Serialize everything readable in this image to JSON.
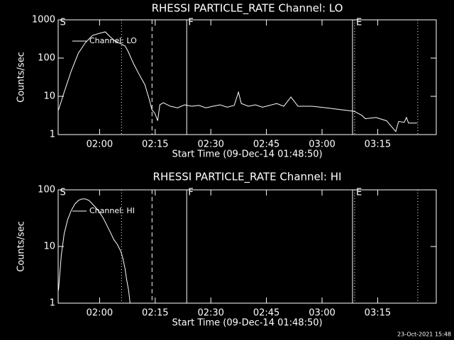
{
  "chart_data": [
    {
      "type": "line",
      "title": "RHESSI PARTICLE_RATE Channel: LO",
      "xlabel": "Start Time (09-Dec-14 01:48:50)",
      "ylabel": "Counts/sec",
      "log_y": true,
      "ylim": [
        1,
        1000
      ],
      "yticks": [
        1,
        10,
        100,
        1000
      ],
      "xlim": [
        108.83,
        210.8
      ],
      "xticks": [
        {
          "value": 120,
          "label": "02:00"
        },
        {
          "value": 135,
          "label": "02:15"
        },
        {
          "value": 150,
          "label": "02:30"
        },
        {
          "value": 165,
          "label": "02:45"
        },
        {
          "value": 180,
          "label": "03:00"
        },
        {
          "value": 195,
          "label": "03:15"
        }
      ],
      "x": [
        108.92,
        110.45,
        112.36,
        114.27,
        116.18,
        118.09,
        120,
        121.53,
        122.87,
        124.2,
        125.73,
        126.88,
        127.64,
        129.17,
        130.7,
        132.23,
        133.38,
        134.14,
        134.91,
        135.67,
        136.24,
        137.2,
        139.11,
        141.02,
        142.93,
        144.84,
        146.75,
        148.66,
        150.57,
        152.49,
        154.4,
        156.31,
        157.45,
        158.22,
        160.13,
        162.04,
        163.95,
        165.86,
        167.77,
        169.68,
        171.6,
        173.51,
        177.33,
        181.15,
        184.97,
        188.22,
        188.79,
        190.7,
        191.66,
        194.53,
        197.39,
        199.88,
        200.64,
        202.17,
        202.75,
        203.32,
        205.61
      ],
      "series": [
        {
          "name": "Channel: LO",
          "color": "#ffffff",
          "values": [
            4.4,
            12.9,
            46,
            134,
            254,
            390,
            445,
            485,
            360,
            278,
            235,
            207,
            153,
            71,
            37,
            20,
            8.4,
            4.4,
            3.6,
            2.3,
            6,
            6.8,
            5.5,
            5,
            6,
            5.5,
            5.8,
            5,
            5.5,
            6,
            5.2,
            5.8,
            12.9,
            6.5,
            5.5,
            6,
            5.2,
            5.8,
            6.5,
            5.5,
            9.6,
            5.5,
            5.5,
            5,
            4.5,
            4.1,
            4,
            3.2,
            2.6,
            2.8,
            2.3,
            1.2,
            2.2,
            2.1,
            2.8,
            2,
            2
          ]
        }
      ],
      "markers": [
        {
          "x": 125.92,
          "style": "dotted"
        },
        {
          "x": 134.14,
          "style": "dashed"
        },
        {
          "x": 143.5,
          "style": "solid"
        },
        {
          "x": 188.22,
          "style": "solid"
        },
        {
          "x": 188.79,
          "style": "dotted"
        },
        {
          "x": 205.8,
          "style": "dotted"
        }
      ],
      "annotations": [
        {
          "text": "S",
          "x": 108.92
        },
        {
          "text": "F",
          "x": 143.5
        },
        {
          "text": "E",
          "x": 188.79
        }
      ]
    },
    {
      "type": "line",
      "title": "RHESSI PARTICLE_RATE Channel: HI",
      "xlabel": "Start Time (09-Dec-14 01:48:50)",
      "ylabel": "Counts/sec",
      "log_y": true,
      "ylim": [
        1,
        100
      ],
      "yticks": [
        1,
        10,
        100
      ],
      "xlim": [
        108.83,
        210.8
      ],
      "xticks": [
        {
          "value": 120,
          "label": "02:00"
        },
        {
          "value": 135,
          "label": "02:15"
        },
        {
          "value": 150,
          "label": "02:30"
        },
        {
          "value": 165,
          "label": "02:45"
        },
        {
          "value": 180,
          "label": "03:00"
        },
        {
          "value": 195,
          "label": "03:15"
        }
      ],
      "x": [
        108.92,
        109.68,
        110.45,
        111.4,
        112.36,
        113.31,
        114.27,
        115.22,
        116.18,
        117.13,
        118.09,
        119.04,
        120,
        120.96,
        121.91,
        122.87,
        123.82,
        124.78,
        125.73,
        126.31,
        126.88,
        127.26,
        127.83,
        128.22
      ],
      "series": [
        {
          "name": "Channel: HI",
          "color": "#ffffff",
          "values": [
            1.68,
            7.1,
            16.8,
            30,
            43,
            56,
            65,
            69,
            69,
            65,
            56,
            48,
            40,
            32,
            24,
            18,
            13.3,
            10.9,
            8.2,
            6.1,
            4,
            2.7,
            1.68,
            1.0
          ]
        }
      ],
      "markers": [
        {
          "x": 125.92,
          "style": "dotted"
        },
        {
          "x": 134.14,
          "style": "dashed"
        },
        {
          "x": 143.5,
          "style": "solid"
        },
        {
          "x": 188.22,
          "style": "solid"
        },
        {
          "x": 188.79,
          "style": "dotted"
        },
        {
          "x": 205.8,
          "style": "dotted"
        }
      ],
      "annotations": [
        {
          "text": "S",
          "x": 108.92
        },
        {
          "text": "F",
          "x": 143.5
        },
        {
          "text": "E",
          "x": 188.79
        }
      ]
    }
  ],
  "footer": "23-Oct-2021 15:48"
}
